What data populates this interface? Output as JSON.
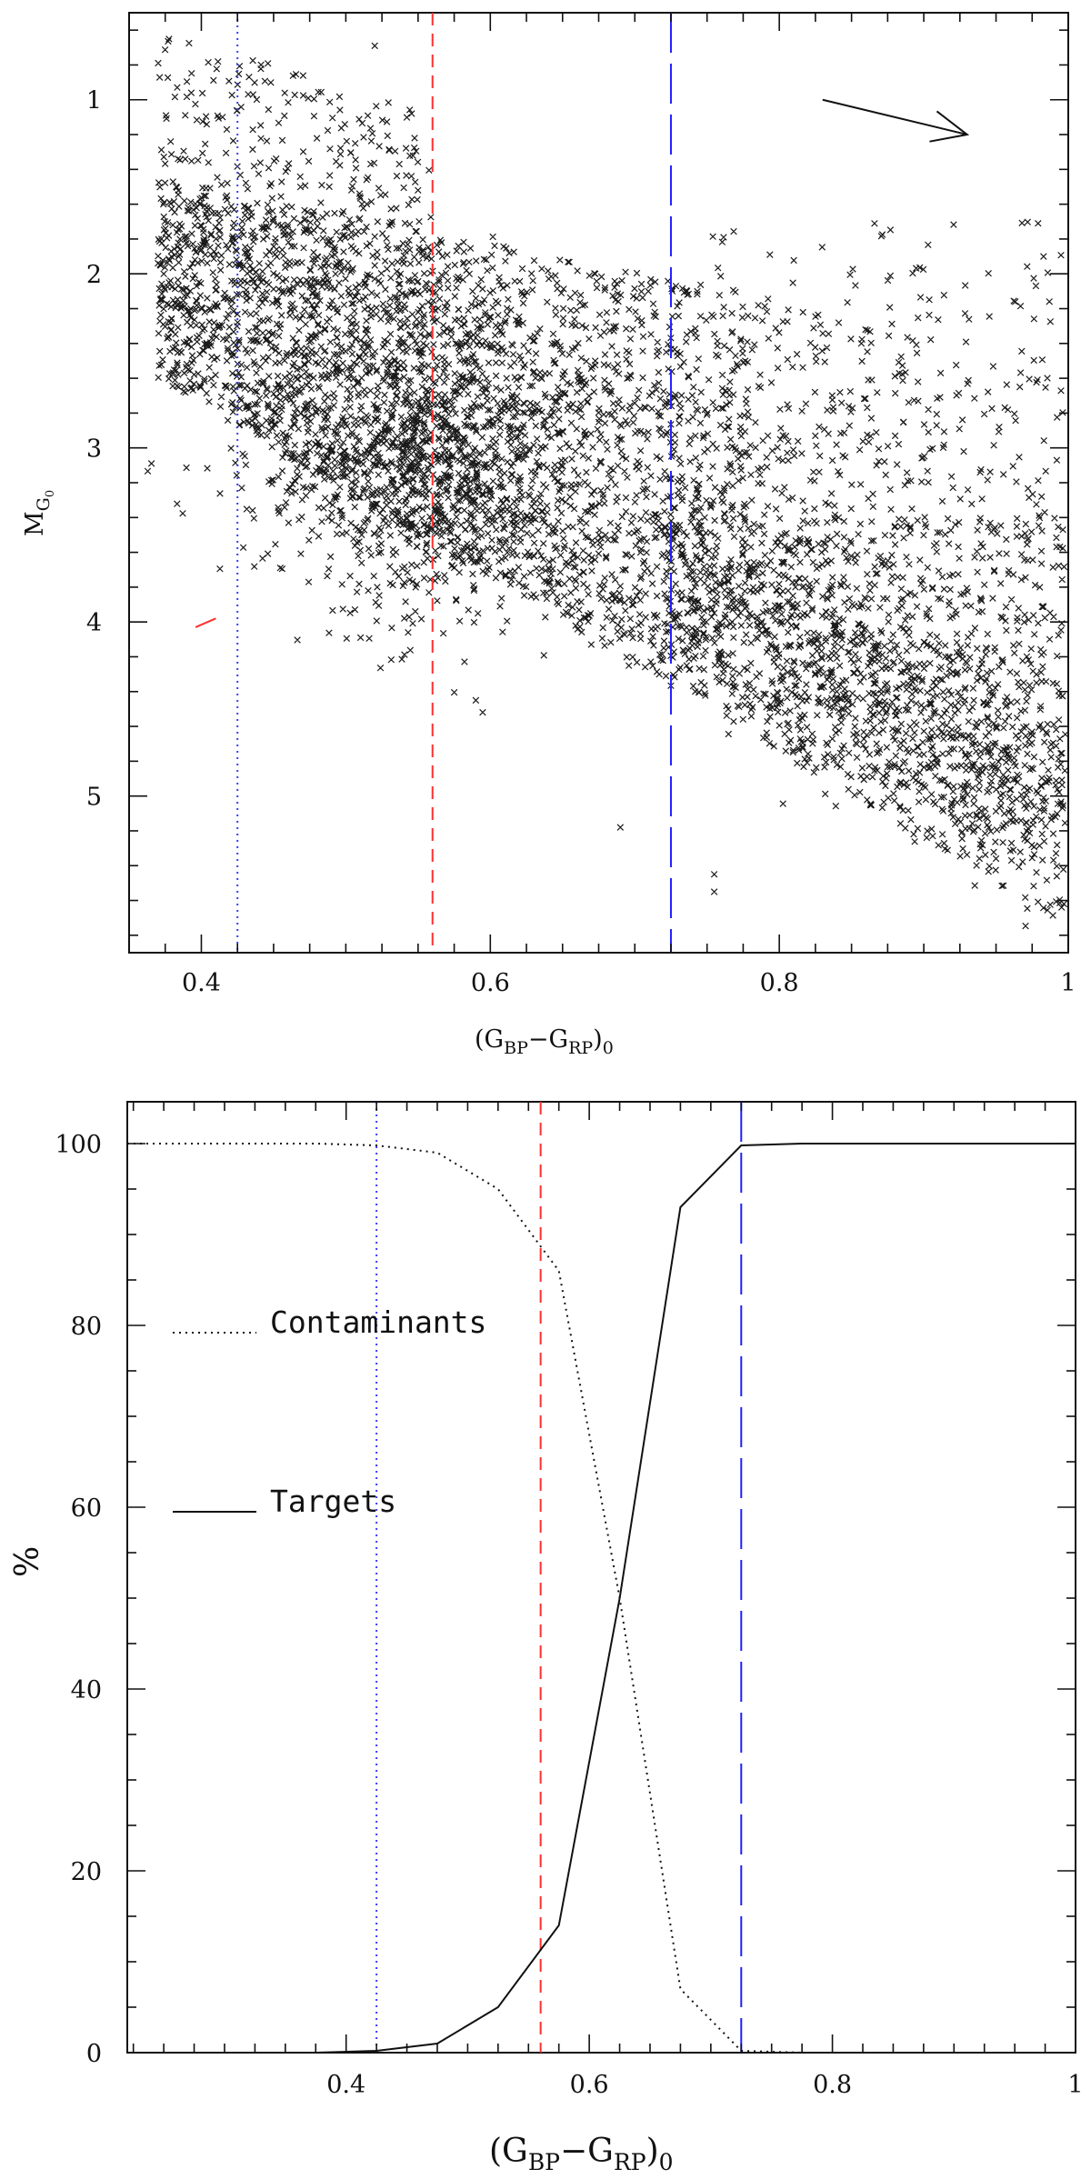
{
  "chart_data": [
    {
      "id": "cmd",
      "type": "scatter",
      "title": "",
      "xlabel": {
        "open": "(G",
        "sub1": "BP",
        "mid": "−G",
        "sub2": "RP",
        "close": ")",
        "sub3": "0"
      },
      "ylabel": {
        "main": "M",
        "sub": "G",
        "subsub": "0"
      },
      "xlim": [
        0.35,
        1.0
      ],
      "ylim": [
        5.9,
        0.5
      ],
      "y_inverted": true,
      "xticks": [
        "0.4",
        "0.6",
        "0.8",
        "1"
      ],
      "xtick_values": [
        0.4,
        0.6,
        0.8,
        1.0
      ],
      "yticks": [
        "1",
        "2",
        "3",
        "4",
        "5"
      ],
      "ytick_values": [
        1,
        2,
        3,
        4,
        5
      ],
      "marker": "x",
      "vertical_lines": [
        {
          "x": 0.425,
          "style": "dotted",
          "color": "#3a3aff"
        },
        {
          "x": 0.56,
          "style": "dashed",
          "color": "#ff3030"
        },
        {
          "x": 0.725,
          "style": "long-dashed",
          "color": "#2020ff"
        }
      ],
      "reddening_arrow": {
        "x0": 0.83,
        "y0": 1.0,
        "x1": 0.93,
        "y1": 1.2,
        "color": "#111111"
      },
      "red_marker": {
        "x0": 0.396,
        "y0": 4.03,
        "x1": 0.41,
        "y1": 3.98,
        "color": "#ff3030"
      },
      "distribution": {
        "n_points": 6500,
        "upper_band": {
          "y_at_0_4": 1.5,
          "slope": 2.0
        },
        "lower_band": {
          "y_at_0_75": 3.8,
          "slope": 5.5
        },
        "turnoff_region": {
          "x": [
            0.37,
            0.56
          ],
          "y": [
            0.6,
            1.9
          ]
        },
        "giant_region": {
          "x": [
            0.75,
            1.0
          ],
          "y": [
            1.7,
            3.6
          ]
        },
        "outliers": [
          [
            0.59,
            4.45
          ],
          [
            0.69,
            5.18
          ],
          [
            0.755,
            5.45
          ],
          [
            0.755,
            5.55
          ],
          [
            0.52,
            0.69
          ],
          [
            0.55,
            1.52
          ]
        ]
      }
    },
    {
      "id": "percent",
      "type": "line",
      "title": "",
      "xlabel": {
        "open": "(G",
        "sub1": "BP",
        "mid": "−G",
        "sub2": "RP",
        "close": ")",
        "sub3": "0"
      },
      "ylabel": "%",
      "xlim": [
        0.22,
        1.0
      ],
      "ylim": [
        0,
        100
      ],
      "xticks": [
        "0.4",
        "0.6",
        "0.8",
        "1"
      ],
      "xtick_values": [
        0.4,
        0.6,
        0.8,
        1.0
      ],
      "yticks": [
        "0",
        "20",
        "40",
        "60",
        "80",
        "100"
      ],
      "ytick_values": [
        0,
        20,
        40,
        60,
        80,
        100
      ],
      "vertical_lines": [
        {
          "x": 0.425,
          "style": "dotted",
          "color": "#3a3aff"
        },
        {
          "x": 0.56,
          "style": "dashed",
          "color": "#ff3030"
        },
        {
          "x": 0.725,
          "style": "long-dashed",
          "color": "#2020ff"
        }
      ],
      "series": [
        {
          "name": "Contaminants",
          "style": "dotted",
          "x": [
            0.22,
            0.325,
            0.375,
            0.425,
            0.475,
            0.525,
            0.575,
            0.625,
            0.675,
            0.725,
            0.775,
            1.0
          ],
          "y": [
            100,
            100,
            100,
            99.8,
            99,
            95,
            86,
            50,
            7,
            0.2,
            0,
            0
          ]
        },
        {
          "name": "Targets",
          "style": "solid",
          "x": [
            0.375,
            0.425,
            0.475,
            0.525,
            0.575,
            0.625,
            0.675,
            0.725,
            0.775,
            1.0
          ],
          "y": [
            0,
            0.2,
            1,
            5,
            14,
            50,
            93,
            99.8,
            100,
            100
          ]
        }
      ],
      "legend": [
        {
          "label": "Contaminants",
          "style": "dotted"
        },
        {
          "label": "Targets",
          "style": "solid"
        }
      ]
    }
  ]
}
